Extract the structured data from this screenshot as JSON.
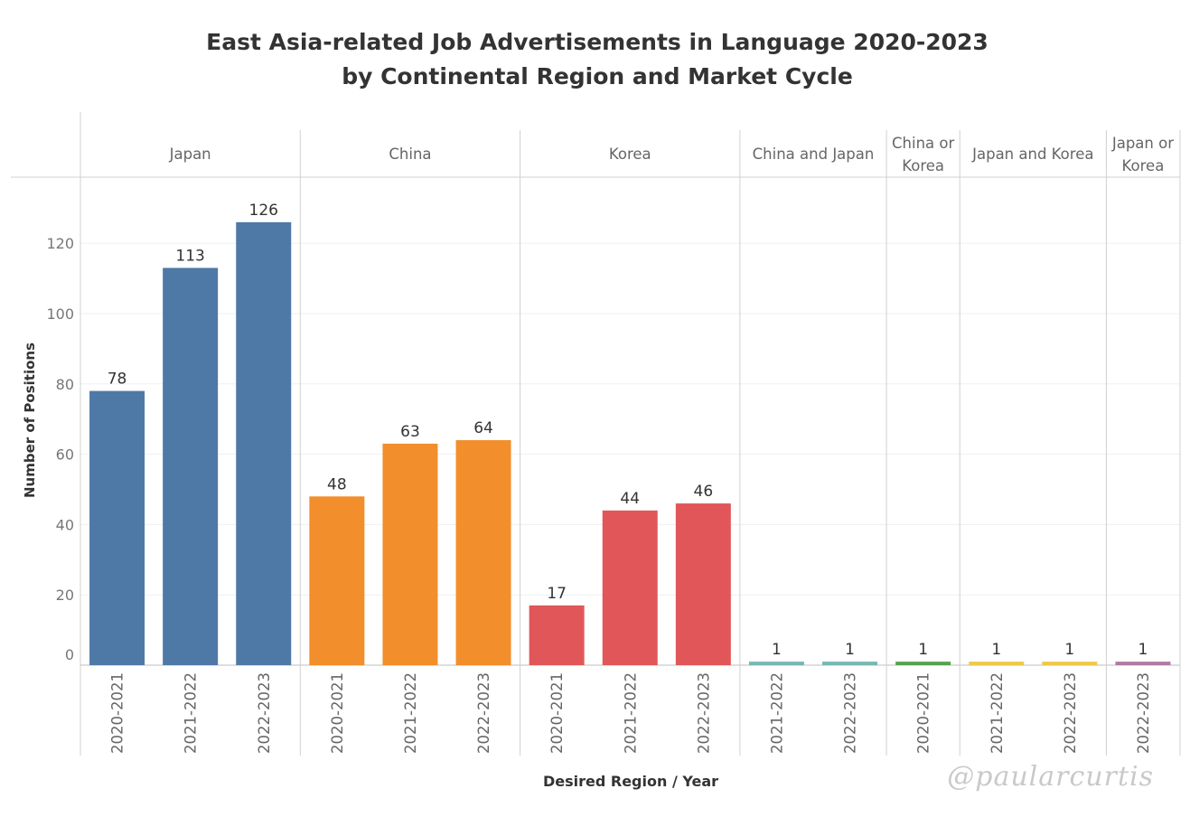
{
  "title_line1": "East Asia-related Job Advertisements in Language 2020-2023",
  "title_line2": "by Continental Region and Market Cycle",
  "watermark": "@paularcurtis",
  "chart_data": {
    "type": "bar",
    "ylabel": "Number of Positions",
    "xlabel_parts": [
      "Desired Region",
      "/",
      "Year"
    ],
    "ylim": [
      0,
      130
    ],
    "yticks": [
      0,
      20,
      40,
      60,
      80,
      100,
      120
    ],
    "grid": true,
    "groups": [
      {
        "name": "Japan",
        "name_lines": [
          "Japan"
        ],
        "color": "#4e79a7",
        "bars": [
          {
            "year": "2020-2021",
            "value": 78
          },
          {
            "year": "2021-2022",
            "value": 113
          },
          {
            "year": "2022-2023",
            "value": 126
          }
        ]
      },
      {
        "name": "China",
        "name_lines": [
          "China"
        ],
        "color": "#f28e2b",
        "bars": [
          {
            "year": "2020-2021",
            "value": 48
          },
          {
            "year": "2021-2022",
            "value": 63
          },
          {
            "year": "2022-2023",
            "value": 64
          }
        ]
      },
      {
        "name": "Korea",
        "name_lines": [
          "Korea"
        ],
        "color": "#e15759",
        "bars": [
          {
            "year": "2020-2021",
            "value": 17
          },
          {
            "year": "2021-2022",
            "value": 44
          },
          {
            "year": "2022-2023",
            "value": 46
          }
        ]
      },
      {
        "name": "China and Japan",
        "name_lines": [
          "China and Japan"
        ],
        "color": "#76b7b2",
        "bars": [
          {
            "year": "2021-2022",
            "value": 1
          },
          {
            "year": "2022-2023",
            "value": 1
          }
        ]
      },
      {
        "name": "China or Korea",
        "name_lines": [
          "China or",
          "Korea"
        ],
        "color": "#59a14f",
        "bars": [
          {
            "year": "2020-2021",
            "value": 1
          }
        ]
      },
      {
        "name": "Japan and Korea",
        "name_lines": [
          "Japan and Korea"
        ],
        "color": "#edc948",
        "bars": [
          {
            "year": "2021-2022",
            "value": 1
          },
          {
            "year": "2022-2023",
            "value": 1
          }
        ]
      },
      {
        "name": "Japan or Korea",
        "name_lines": [
          "Japan or",
          "Korea"
        ],
        "color": "#b07aa1",
        "bars": [
          {
            "year": "2022-2023",
            "value": 1
          }
        ]
      }
    ]
  }
}
